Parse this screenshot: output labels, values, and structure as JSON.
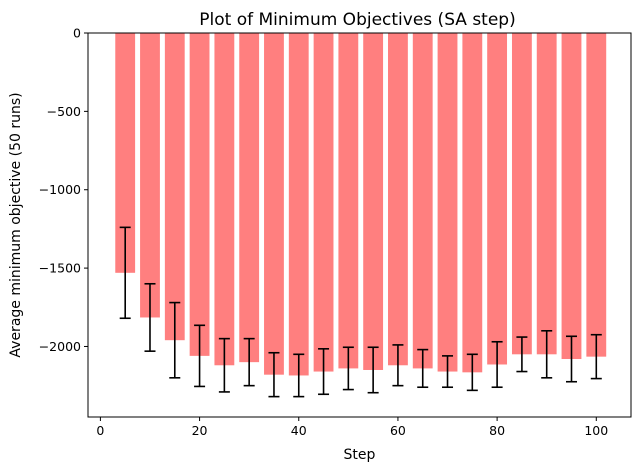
{
  "chart_data": {
    "type": "bar",
    "title": "Plot of Minimum Objectives (SA step)",
    "xlabel": "Step",
    "ylabel": "Average minimum objective (50 runs)",
    "x": [
      5,
      10,
      15,
      20,
      25,
      30,
      35,
      40,
      45,
      50,
      55,
      60,
      65,
      70,
      75,
      80,
      85,
      90,
      95,
      100
    ],
    "values": [
      -1530,
      -1815,
      -1960,
      -2060,
      -2120,
      -2100,
      -2180,
      -2185,
      -2160,
      -2140,
      -2150,
      -2120,
      -2140,
      -2160,
      -2165,
      -2115,
      -2050,
      -2050,
      -2080,
      -2065
    ],
    "errors": [
      290,
      215,
      240,
      195,
      170,
      150,
      140,
      135,
      145,
      135,
      145,
      130,
      120,
      100,
      115,
      145,
      110,
      150,
      145,
      140
    ],
    "xlim": [
      -2.5,
      107
    ],
    "ylim": [
      -2450,
      0
    ],
    "xticks": [
      0,
      20,
      40,
      60,
      80,
      100
    ],
    "yticks": [
      0,
      -500,
      -1000,
      -1500,
      -2000
    ],
    "ytick_labels": [
      "0",
      "−500",
      "−1000",
      "−1500",
      "−2000"
    ],
    "grid": false,
    "bar_color": "#ff7f7f",
    "error_bar_color": "#000000"
  }
}
